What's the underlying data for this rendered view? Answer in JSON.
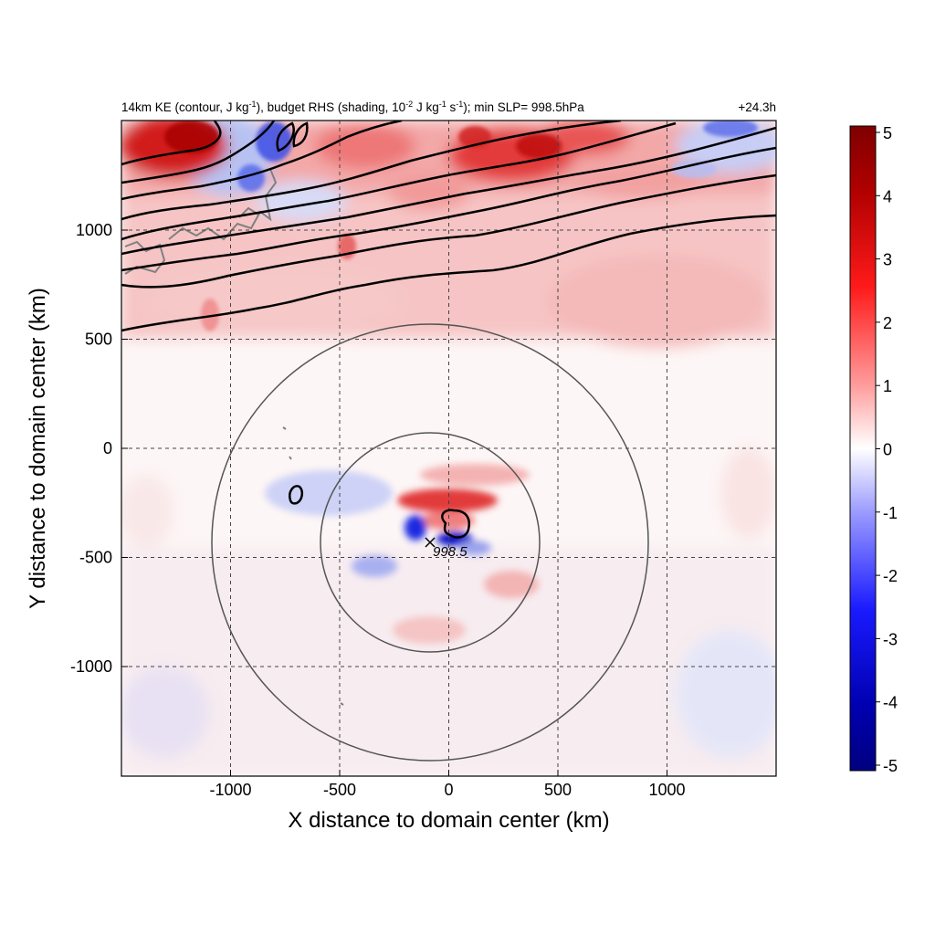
{
  "chart_data": {
    "type": "heatmap",
    "title": {
      "part1": "14km KE (contour, J kg",
      "sup1": "-1",
      "part2": "), budget RHS (shading, 10",
      "sup2": "-2",
      "part3": " J kg",
      "sup3": "-1",
      "part4": " s",
      "sup4": "-1",
      "part5": "); min SLP= 998.5hPa"
    },
    "time_label": "+24.3h",
    "xlabel": "X distance to domain center (km)",
    "ylabel": "Y distance to domain center (km)",
    "xlim": [
      -1500,
      1500
    ],
    "ylim": [
      -1500,
      1500
    ],
    "xticks": [
      -1000,
      -500,
      0,
      500,
      1000
    ],
    "yticks": [
      -1000,
      -500,
      0,
      500,
      1000
    ],
    "grid": "dashed",
    "colorbar": {
      "min": -5,
      "max": 5,
      "ticks": [
        5,
        4,
        3,
        2,
        1,
        0,
        -1,
        -2,
        -3,
        -4,
        -5
      ],
      "colors": [
        "#00007f",
        "#0000ff",
        "#ffffff",
        "#ff0000",
        "#7f0000"
      ]
    },
    "storm_center": {
      "x": -80,
      "y": -430,
      "label": "998.5"
    },
    "radius_circles_km": [
      500,
      1000
    ]
  }
}
